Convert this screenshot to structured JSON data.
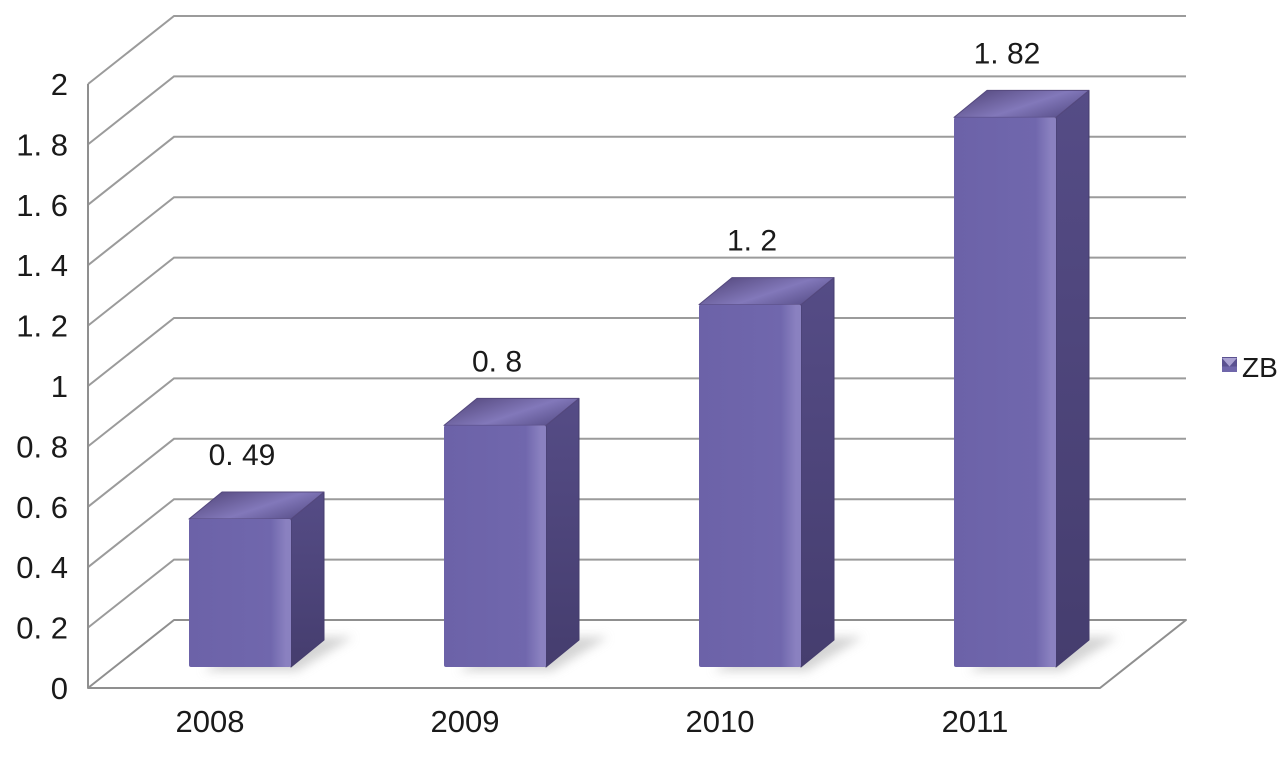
{
  "chart_data": {
    "type": "bar",
    "style": "3d-column",
    "title": "",
    "categories": [
      "2008",
      "2009",
      "2010",
      "2011"
    ],
    "series": [
      {
        "name": "ZB",
        "values": [
          0.49,
          0.8,
          1.2,
          1.82
        ],
        "data_labels": [
          "0. 49",
          "0. 8",
          "1. 2",
          "1. 82"
        ]
      }
    ],
    "y_axis": {
      "min": 0,
      "max": 2,
      "step": 0.2,
      "tick_labels": [
        "2",
        "1. 8",
        "1. 6",
        "1. 4",
        "1. 2",
        "1",
        "0. 8",
        "0. 6",
        "0. 4",
        "0. 2",
        "0"
      ],
      "tick_values": [
        2,
        1.8,
        1.6,
        1.4,
        1.2,
        1,
        0.8,
        0.6,
        0.4,
        0.2,
        0
      ]
    },
    "x_axis": {
      "tick_labels": [
        "2008",
        "2009",
        "2010",
        "2011"
      ]
    },
    "legend": {
      "label": "ZB",
      "position": "right",
      "marker": "cube-icon"
    },
    "gridlines": true,
    "colors": {
      "bar_front": "#6c62a8",
      "bar_front_mid": "#7067ad",
      "bar_front_highlight": "#8a81c0",
      "bar_side_top": "#554c86",
      "bar_side_bottom": "#453d6e",
      "bar_top_dark": "#55497e",
      "bar_top_light": "#8278ba",
      "legend_marker_light": "#aaa2d2",
      "legend_marker_dark": "#5a5190",
      "legend_marker_mid": "#6f66aa",
      "gridline": "#9b9b9b",
      "axis": "#8f8f8f",
      "text": "#1a1a1a",
      "shadow": "#c3c3c3",
      "background": "#ffffff"
    }
  }
}
